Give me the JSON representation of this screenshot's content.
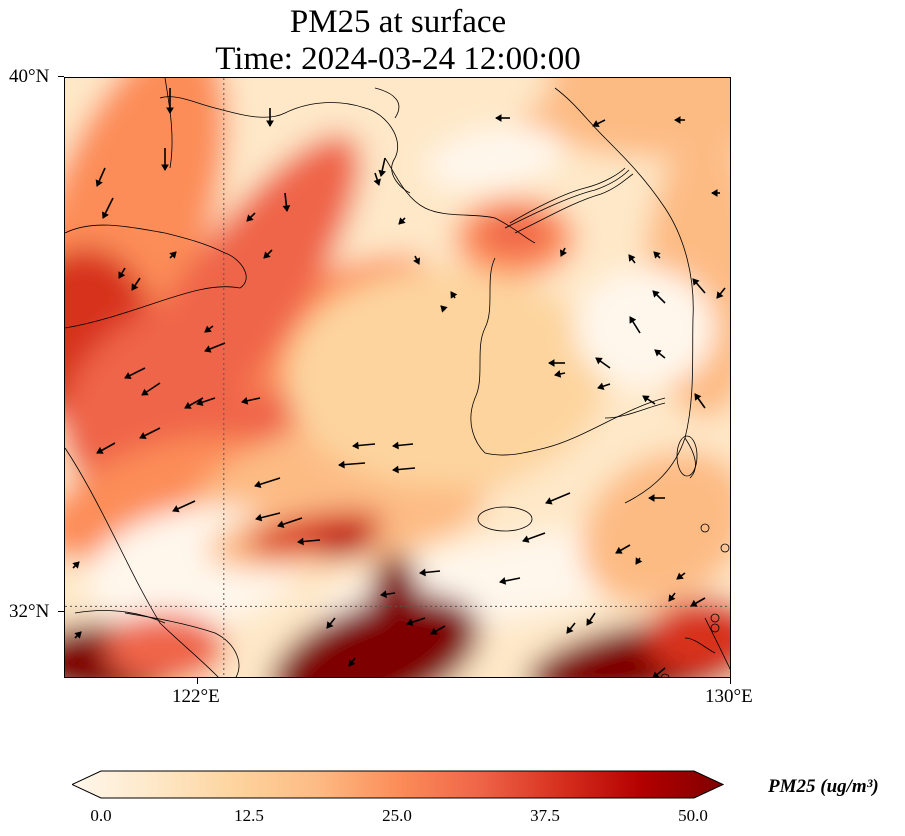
{
  "title": {
    "line1": "PM25 at surface",
    "line2": "Time: 2024-03-24 12:00:00"
  },
  "map": {
    "extent": {
      "lon": [
        119.5,
        130.0
      ],
      "lat": [
        30.9,
        40.0
      ]
    },
    "lat_ticks": [
      {
        "value": 40,
        "label": "40°N"
      },
      {
        "value": 32,
        "label": "32°N"
      }
    ],
    "lon_ticks": [
      {
        "value": 122,
        "label": "122°E"
      },
      {
        "value": 130,
        "label": "130°E"
      }
    ],
    "gridlines": {
      "lon": [
        122
      ],
      "lat": [
        32
      ],
      "style": "dotted"
    },
    "field": "PM25",
    "colormap": "OrRd",
    "wind_vectors": true
  },
  "colorbar": {
    "min": 0.0,
    "max": 50.0,
    "extend": "both",
    "tick_labels": [
      "0.0",
      "12.5",
      "25.0",
      "37.5",
      "50.0"
    ],
    "title": "PM25 (ug/m³)",
    "colors": [
      "#fff7ec",
      "#fee8c8",
      "#fdd49e",
      "#fdbb84",
      "#fc8d59",
      "#ef6548",
      "#d7301f",
      "#b30000",
      "#7f0000"
    ]
  }
}
